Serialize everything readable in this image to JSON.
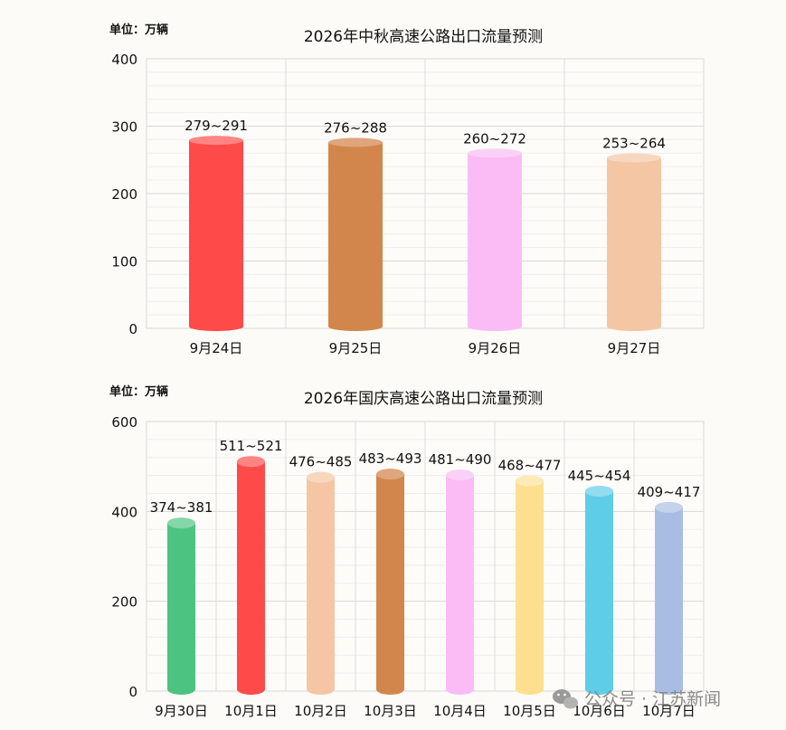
{
  "chart_data": [
    {
      "type": "bar",
      "title": "2026年中秋高速公路出口流量预测",
      "unit_label": "单位：万辆",
      "ylim": [
        0,
        400
      ],
      "yticks": [
        0,
        100,
        200,
        300,
        400
      ],
      "grid": true,
      "categories": [
        "9月24日",
        "9月25日",
        "9月26日",
        "9月27日"
      ],
      "labels": [
        "279~291",
        "276~288",
        "260~272",
        "253~264"
      ],
      "values": [
        279,
        276,
        260,
        253
      ],
      "colors": [
        "#ff4a4a",
        "#d3864c",
        "#fbbcf6",
        "#f5c6a3"
      ],
      "cap_colors": [
        "#ff8585",
        "#dfa57c",
        "#fbd0f8",
        "#f8d7bf"
      ]
    },
    {
      "type": "bar",
      "title": "2026年国庆高速公路出口流量预测",
      "unit_label": "单位：万辆",
      "ylim": [
        0,
        600
      ],
      "yticks": [
        0,
        200,
        400,
        600
      ],
      "grid": true,
      "categories": [
        "9月30日",
        "10月1日",
        "10月2日",
        "10月3日",
        "10月4日",
        "10月5日",
        "10月6日",
        "10月7日"
      ],
      "labels": [
        "374~381",
        "511~521",
        "476~485",
        "483~493",
        "481~490",
        "468~477",
        "445~454",
        "409~417"
      ],
      "values": [
        374,
        511,
        476,
        483,
        481,
        468,
        445,
        409
      ],
      "colors": [
        "#4dc381",
        "#ff4a4a",
        "#f5c6a3",
        "#d3864c",
        "#fbbcf6",
        "#fde08f",
        "#5ecde8",
        "#a9bde3"
      ],
      "cap_colors": [
        "#85d6a8",
        "#ff8585",
        "#f8d7bf",
        "#dfa57c",
        "#fbd0f8",
        "#feeab6",
        "#92dcef",
        "#c5d2ec"
      ]
    }
  ],
  "watermark": {
    "text": "公众号 · 江苏新闻",
    "icon": "wechat-icon"
  }
}
